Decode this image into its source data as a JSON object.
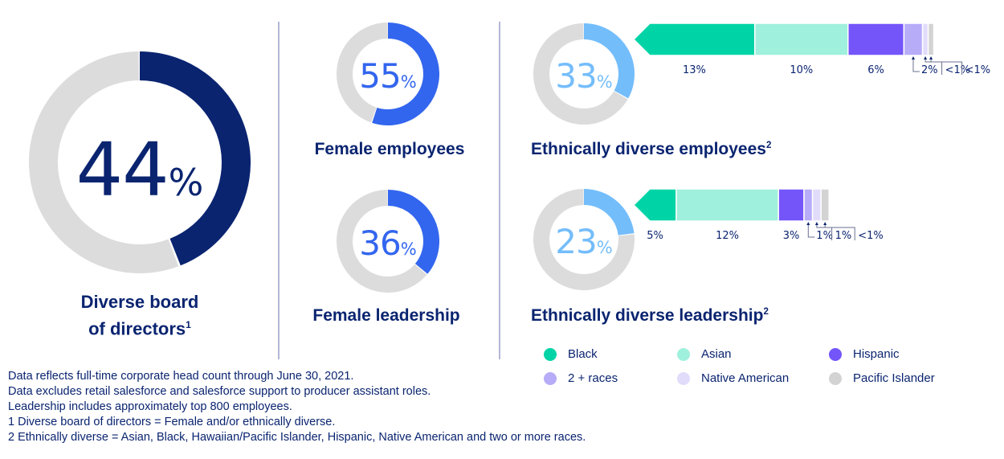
{
  "colors": {
    "navy": "#0a2470",
    "royal_blue": "#3366ee",
    "sky_blue": "#74bdfb",
    "track_gray": "#dcdcdc",
    "black_group": "#00d4a6",
    "asian_group": "#9ff0dc",
    "hispanic_group": "#7455fa",
    "two_races_group": "#b6acf8",
    "native_american_group": "#e1dcfa",
    "pacific_islander_group": "#d3d3d3",
    "divider": "#b3b7d6"
  },
  "chart_data": [
    {
      "type": "pie",
      "variant": "donut",
      "id": "board",
      "title": "Diverse board of directors",
      "footnote_ref": "1",
      "value": 44,
      "value_text": "44",
      "unit": "%",
      "remainder": 56
    },
    {
      "type": "pie",
      "variant": "donut",
      "id": "female_employees",
      "title": "Female employees",
      "value": 55,
      "value_text": "55",
      "unit": "%",
      "remainder": 45
    },
    {
      "type": "pie",
      "variant": "donut",
      "id": "female_leadership",
      "title": "Female leadership",
      "value": 36,
      "value_text": "36",
      "unit": "%",
      "remainder": 64
    },
    {
      "type": "pie",
      "variant": "donut",
      "id": "ethnic_employees",
      "title": "Ethnically diverse employees",
      "footnote_ref": "2",
      "value": 33,
      "value_text": "33",
      "unit": "%",
      "remainder": 67
    },
    {
      "type": "pie",
      "variant": "donut",
      "id": "ethnic_leadership",
      "title": "Ethnically diverse leadership",
      "footnote_ref": "2",
      "value": 23,
      "value_text": "23",
      "unit": "%",
      "remainder": 77
    },
    {
      "type": "bar",
      "variant": "stacked-horizontal",
      "id": "ethnic_employees_breakdown",
      "categories": [
        "Black",
        "Asian",
        "Hispanic",
        "2 + races",
        "Native American",
        "Pacific Islander"
      ],
      "values": [
        13,
        10,
        6,
        2,
        0.5,
        0.5
      ],
      "labels": [
        "13%",
        "10%",
        "6%",
        "2%",
        "<1%",
        "<1%"
      ]
    },
    {
      "type": "bar",
      "variant": "stacked-horizontal",
      "id": "ethnic_leadership_breakdown",
      "categories": [
        "Black",
        "Asian",
        "Hispanic",
        "2 + races",
        "Native American",
        "Pacific Islander"
      ],
      "values": [
        5,
        12,
        3,
        1,
        1,
        0.5
      ],
      "labels": [
        "5%",
        "12%",
        "3%",
        "1%",
        "1%",
        "<1%"
      ]
    }
  ],
  "legend": [
    {
      "label": "Black",
      "color": "#00d4a6"
    },
    {
      "label": "Asian",
      "color": "#9ff0dc"
    },
    {
      "label": "Hispanic",
      "color": "#7455fa"
    },
    {
      "label": "2 + races",
      "color": "#b6acf8"
    },
    {
      "label": "Native American",
      "color": "#e1dcfa"
    },
    {
      "label": "Pacific Islander",
      "color": "#d3d3d3"
    }
  ],
  "labels": {
    "board_line1": "Diverse board",
    "board_line2": "of directors",
    "board_sup": "1",
    "female_employees": "Female employees",
    "female_leadership": "Female leadership",
    "ethnic_employees": "Ethnically diverse employees",
    "ethnic_employees_sup": "2",
    "ethnic_leadership": "Ethnically diverse leadership",
    "ethnic_leadership_sup": "2"
  },
  "notes": [
    "Data reflects full-time corporate head count through June 30, 2021.",
    "Data excludes retail salesforce and salesforce support to producer assistant roles.",
    "Leadership includes approximately top 800 employees.",
    "1  Diverse board of directors = Female and/or ethnically diverse.",
    "2  Ethnically diverse = Asian, Black, Hawaiian/Pacific Islander, Hispanic, Native American and two or more races."
  ]
}
